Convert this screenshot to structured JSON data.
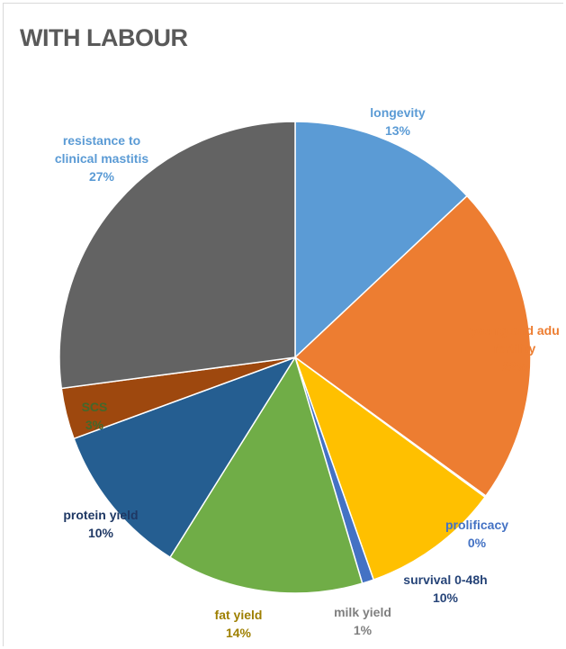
{
  "chart_data": {
    "type": "pie",
    "title": "WITH LABOUR",
    "slices": [
      {
        "label": [
          "longevity"
        ],
        "value": 13,
        "pct": "13%",
        "color": "#5b9bd5",
        "label_color": "#5b9bd5"
      },
      {
        "label": [
          "young and adu",
          "fertility"
        ],
        "value": 22,
        "pct": "22%",
        "color": "#ed7d31",
        "label_color": "#ed7d31"
      },
      {
        "label": [
          "prolificacy"
        ],
        "value": 0.1,
        "pct": "0%",
        "color": "#a5a5a5",
        "label_color": "#4472c4"
      },
      {
        "label": [
          "survival 0-48h"
        ],
        "value": 9.5,
        "pct": "10%",
        "color": "#ffc000",
        "label_color": "#264478"
      },
      {
        "label": [
          "milk yield"
        ],
        "value": 0.8,
        "pct": "1%",
        "color": "#4472c4",
        "label_color": "#7f7f7f"
      },
      {
        "label": [
          "fat yield"
        ],
        "value": 13.5,
        "pct": "14%",
        "color": "#70ad47",
        "label_color": "#9e7f00"
      },
      {
        "label": [
          "protein yield"
        ],
        "value": 10.5,
        "pct": "10%",
        "color": "#255e91",
        "label_color": "#1f3864"
      },
      {
        "label": [
          "SCS"
        ],
        "value": 3.5,
        "pct": "3%",
        "color": "#9e480e",
        "label_color": "#43682b"
      },
      {
        "label": [
          "resistance to",
          "clinical mastitis"
        ],
        "value": 27.1,
        "pct": "27%",
        "color": "#636363",
        "label_color": "#5b9bd5"
      }
    ]
  }
}
